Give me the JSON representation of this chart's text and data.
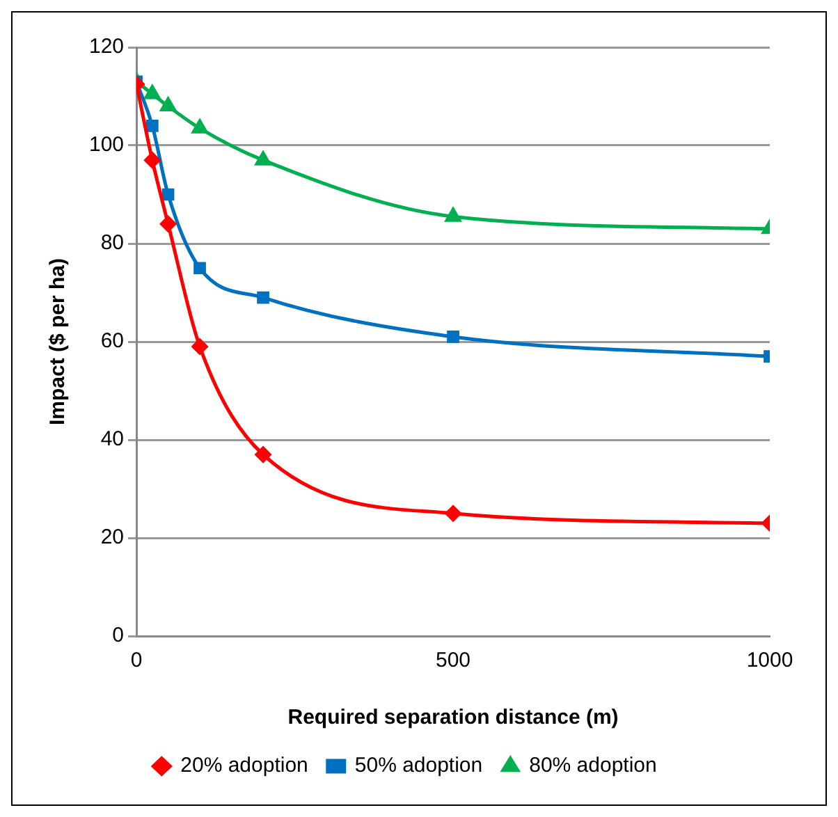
{
  "chart_data": {
    "type": "line",
    "xlabel": "Required separation distance (m)",
    "ylabel": "Impact ($ per ha)",
    "x": [
      0,
      25,
      50,
      100,
      200,
      500,
      1000
    ],
    "series": [
      {
        "name": "80% adoption",
        "color": "#00b050",
        "marker": "triangle",
        "values": [
          113,
          110.5,
          108,
          103.5,
          97,
          85.5,
          83
        ]
      },
      {
        "name": "50% adoption",
        "color": "#0070c0",
        "marker": "square",
        "values": [
          113,
          104,
          90,
          75,
          69,
          61,
          57
        ]
      },
      {
        "name": "20% adoption",
        "color": "#ff0000",
        "marker": "diamond",
        "values": [
          112.5,
          97,
          84,
          59,
          37,
          25,
          23
        ]
      }
    ],
    "xlim": [
      0,
      1000
    ],
    "xticks": [
      0,
      500,
      1000
    ],
    "ylim": [
      0,
      120
    ],
    "yticks": [
      0,
      20,
      40,
      60,
      80,
      100,
      120
    ],
    "grid": "y",
    "legend": "bottom",
    "line_style": "solid"
  }
}
